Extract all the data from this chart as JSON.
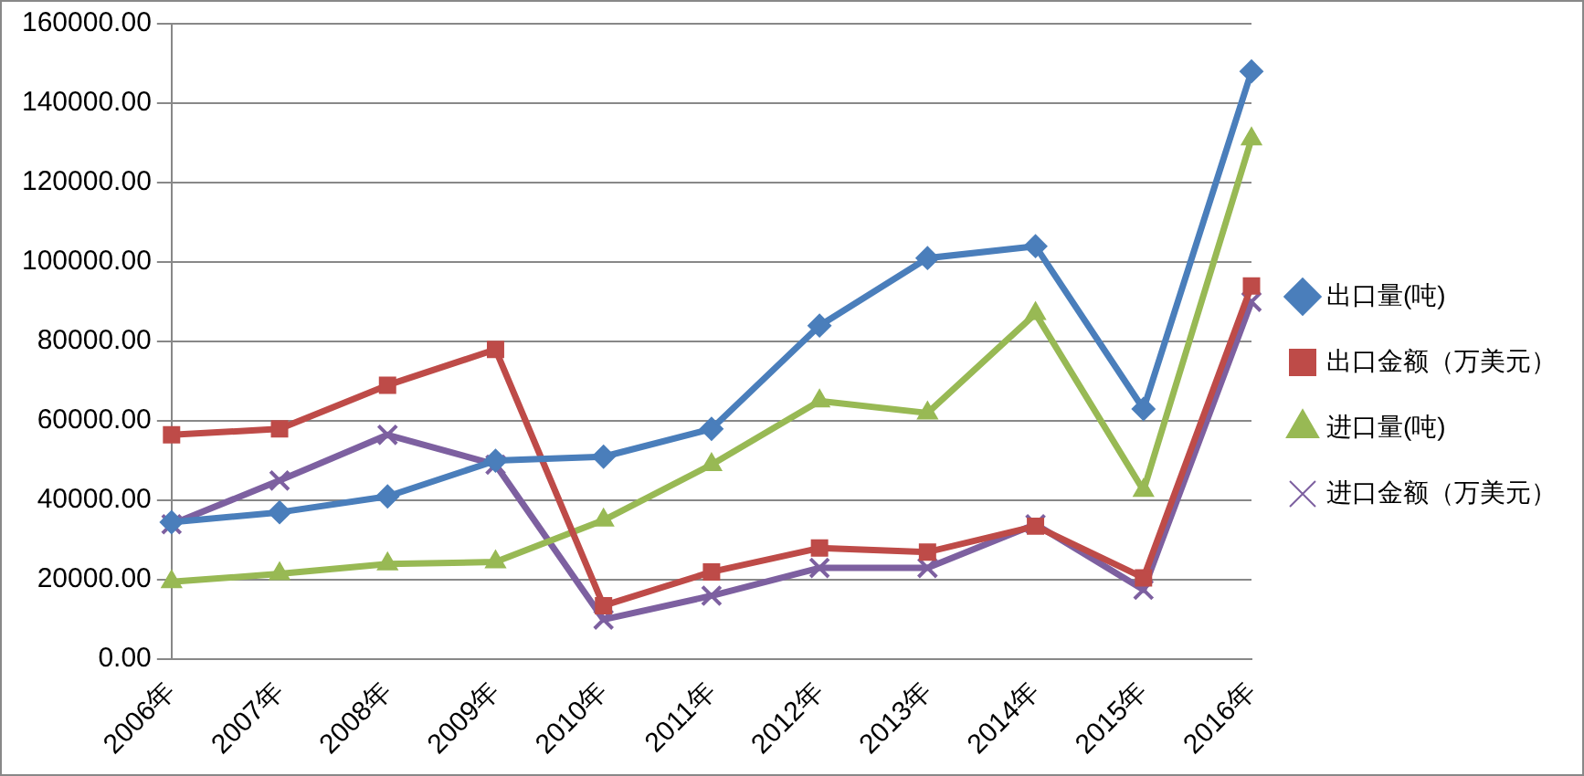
{
  "chart_data": {
    "type": "line",
    "categories": [
      "2006年",
      "2007年",
      "2008年",
      "2009年",
      "2010年",
      "2011年",
      "2012年",
      "2013年",
      "2014年",
      "2015年",
      "2016年"
    ],
    "ylim": [
      0,
      160000
    ],
    "yticks": [
      {
        "value": 0,
        "label": "0.00"
      },
      {
        "value": 20000,
        "label": "20000.00"
      },
      {
        "value": 40000,
        "label": "40000.00"
      },
      {
        "value": 60000,
        "label": "60000.00"
      },
      {
        "value": 80000,
        "label": "80000.00"
      },
      {
        "value": 100000,
        "label": "100000.00"
      },
      {
        "value": 120000,
        "label": "120000.00"
      },
      {
        "value": 140000,
        "label": "140000.00"
      },
      {
        "value": 160000,
        "label": "160000.00"
      }
    ],
    "grid": "y",
    "legend": "right",
    "series": [
      {
        "name": "出口量(吨)",
        "color": "#4a7ebb",
        "marker": "diamond",
        "values": [
          34500,
          37000,
          41000,
          50000,
          51000,
          58000,
          84000,
          101000,
          104000,
          63000,
          148000
        ]
      },
      {
        "name": "出口金额（万美元）",
        "color": "#be4b48",
        "marker": "square",
        "values": [
          56500,
          58000,
          69000,
          78000,
          13500,
          22000,
          28000,
          27000,
          33500,
          20500,
          94000
        ]
      },
      {
        "name": "进口量(吨)",
        "color": "#98b954",
        "marker": "triangle",
        "values": [
          19500,
          21500,
          24000,
          24500,
          35000,
          49000,
          65000,
          62000,
          87000,
          42500,
          131000
        ]
      },
      {
        "name": "进口金额（万美元）",
        "color": "#7d60a0",
        "marker": "cross",
        "values": [
          34000,
          45000,
          56500,
          49000,
          10000,
          16000,
          23000,
          23000,
          34000,
          17500,
          90000
        ]
      }
    ]
  }
}
